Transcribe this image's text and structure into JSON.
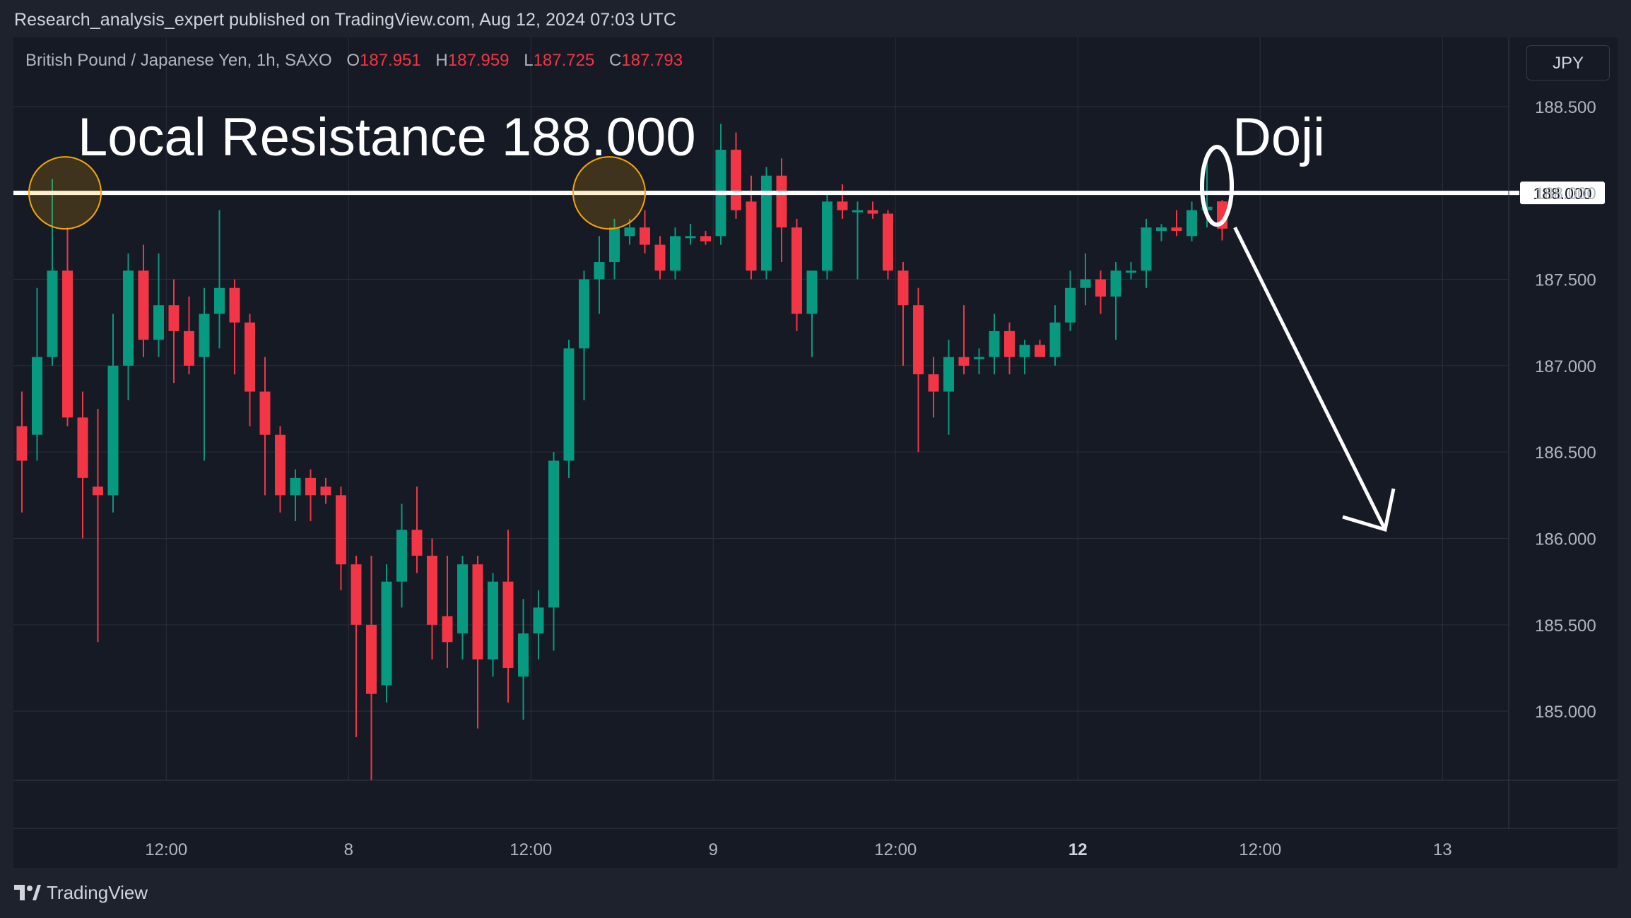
{
  "header": {
    "publisher_line": "Research_analysis_expert published on TradingView.com, Aug 12, 2024 07:03 UTC"
  },
  "legend": {
    "symbol": "British Pound / Japanese Yen, 1h, SAXO",
    "open_label": "O",
    "open": "187.951",
    "high_label": "H",
    "high": "187.959",
    "low_label": "L",
    "low": "187.725",
    "close_label": "C",
    "close": "187.793"
  },
  "currency_button": "JPY",
  "footer": {
    "brand": "TradingView"
  },
  "colors": {
    "up": "#089981",
    "down": "#f23645",
    "background": "#161a25",
    "grid": "#2a2e39",
    "annotation": "#ffffff",
    "highlight_circle": "#f7a600"
  },
  "chart_data": {
    "type": "candlestick",
    "ylim": [
      184.6,
      188.9
    ],
    "y_ticks": [
      "188.500",
      "188.000",
      "187.500",
      "187.000",
      "186.500",
      "186.000",
      "185.500",
      "185.000"
    ],
    "y_tick_values": [
      188.5,
      188.0,
      187.5,
      187.0,
      186.5,
      186.0,
      185.5,
      185.0
    ],
    "x_ticks": [
      {
        "label": "12:00",
        "bold": false,
        "index": 9.5
      },
      {
        "label": "8",
        "bold": false,
        "index": 21.5
      },
      {
        "label": "12:00",
        "bold": false,
        "index": 33.5
      },
      {
        "label": "9",
        "bold": false,
        "index": 45.5
      },
      {
        "label": "12:00",
        "bold": false,
        "index": 57.5
      },
      {
        "label": "12",
        "bold": true,
        "index": 69.5
      },
      {
        "label": "12:00",
        "bold": false,
        "index": 81.5
      },
      {
        "label": "13",
        "bold": false,
        "index": 93.5
      }
    ],
    "candles": [
      [
        186.65,
        186.85,
        186.15,
        186.45
      ],
      [
        186.6,
        187.45,
        186.45,
        187.05
      ],
      [
        187.05,
        188.08,
        187.0,
        187.55
      ],
      [
        187.55,
        187.8,
        186.65,
        186.7
      ],
      [
        186.7,
        186.85,
        186.0,
        186.35
      ],
      [
        186.3,
        186.75,
        185.4,
        186.25
      ],
      [
        186.25,
        187.3,
        186.15,
        187.0
      ],
      [
        187.0,
        187.65,
        186.8,
        187.55
      ],
      [
        187.55,
        187.7,
        187.05,
        187.15
      ],
      [
        187.15,
        187.65,
        187.05,
        187.35
      ],
      [
        187.35,
        187.5,
        186.9,
        187.2
      ],
      [
        187.2,
        187.4,
        186.95,
        187.0
      ],
      [
        187.05,
        187.45,
        186.45,
        187.3
      ],
      [
        187.3,
        187.9,
        187.1,
        187.45
      ],
      [
        187.45,
        187.5,
        186.95,
        187.25
      ],
      [
        187.25,
        187.3,
        186.65,
        186.85
      ],
      [
        186.85,
        187.05,
        186.25,
        186.6
      ],
      [
        186.6,
        186.65,
        186.15,
        186.25
      ],
      [
        186.25,
        186.4,
        186.1,
        186.35
      ],
      [
        186.35,
        186.4,
        186.1,
        186.25
      ],
      [
        186.3,
        186.35,
        186.2,
        186.25
      ],
      [
        186.25,
        186.3,
        185.7,
        185.85
      ],
      [
        185.85,
        185.9,
        184.85,
        185.5
      ],
      [
        185.5,
        185.9,
        184.6,
        185.1
      ],
      [
        185.15,
        185.85,
        185.05,
        185.75
      ],
      [
        185.75,
        186.2,
        185.6,
        186.05
      ],
      [
        186.05,
        186.3,
        185.8,
        185.9
      ],
      [
        185.9,
        186.0,
        185.3,
        185.5
      ],
      [
        185.55,
        185.9,
        185.25,
        185.4
      ],
      [
        185.45,
        185.9,
        185.3,
        185.85
      ],
      [
        185.85,
        185.9,
        184.9,
        185.3
      ],
      [
        185.3,
        185.8,
        185.2,
        185.75
      ],
      [
        185.75,
        186.05,
        185.05,
        185.25
      ],
      [
        185.2,
        185.65,
        184.95,
        185.45
      ],
      [
        185.45,
        185.7,
        185.3,
        185.6
      ],
      [
        185.6,
        186.5,
        185.35,
        186.45
      ],
      [
        186.45,
        187.15,
        186.35,
        187.1
      ],
      [
        187.1,
        187.55,
        186.8,
        187.5
      ],
      [
        187.5,
        187.75,
        187.3,
        187.6
      ],
      [
        187.6,
        187.85,
        187.5,
        187.8
      ],
      [
        187.75,
        187.85,
        187.7,
        187.8
      ],
      [
        187.8,
        187.9,
        187.65,
        187.7
      ],
      [
        187.7,
        187.75,
        187.5,
        187.55
      ],
      [
        187.55,
        187.8,
        187.5,
        187.75
      ],
      [
        187.75,
        187.82,
        187.7,
        187.75
      ],
      [
        187.75,
        187.78,
        187.7,
        187.72
      ],
      [
        187.75,
        188.4,
        187.7,
        188.25
      ],
      [
        188.25,
        188.35,
        187.85,
        187.9
      ],
      [
        187.95,
        188.1,
        187.5,
        187.55
      ],
      [
        187.55,
        188.15,
        187.5,
        188.1
      ],
      [
        188.1,
        188.2,
        187.6,
        187.8
      ],
      [
        187.8,
        187.85,
        187.2,
        187.3
      ],
      [
        187.3,
        187.55,
        187.05,
        187.55
      ],
      [
        187.55,
        188.0,
        187.5,
        187.95
      ],
      [
        187.95,
        188.05,
        187.85,
        187.9
      ],
      [
        187.9,
        187.95,
        187.5,
        187.9
      ],
      [
        187.9,
        187.95,
        187.85,
        187.88
      ],
      [
        187.88,
        187.9,
        187.5,
        187.55
      ],
      [
        187.55,
        187.6,
        187.0,
        187.35
      ],
      [
        187.35,
        187.45,
        186.5,
        186.95
      ],
      [
        186.95,
        187.05,
        186.7,
        186.85
      ],
      [
        186.85,
        187.15,
        186.6,
        187.05
      ],
      [
        187.05,
        187.35,
        186.95,
        187.0
      ],
      [
        187.05,
        187.1,
        186.95,
        187.05
      ],
      [
        187.05,
        187.3,
        186.95,
        187.2
      ],
      [
        187.2,
        187.25,
        186.95,
        187.05
      ],
      [
        187.05,
        187.15,
        186.95,
        187.12
      ],
      [
        187.12,
        187.15,
        187.05,
        187.05
      ],
      [
        187.05,
        187.35,
        187.0,
        187.25
      ],
      [
        187.25,
        187.55,
        187.2,
        187.45
      ],
      [
        187.45,
        187.65,
        187.35,
        187.5
      ],
      [
        187.5,
        187.55,
        187.3,
        187.4
      ],
      [
        187.4,
        187.6,
        187.15,
        187.55
      ],
      [
        187.55,
        187.6,
        187.5,
        187.55
      ],
      [
        187.55,
        187.85,
        187.45,
        187.8
      ],
      [
        187.78,
        187.82,
        187.72,
        187.8
      ],
      [
        187.8,
        187.9,
        187.75,
        187.78
      ],
      [
        187.75,
        187.95,
        187.72,
        187.9
      ],
      [
        187.9,
        188.2,
        187.8,
        187.92
      ],
      [
        187.951,
        187.959,
        187.725,
        187.793
      ]
    ],
    "horizontal_line": {
      "value": 188.0,
      "label": "188.000"
    },
    "annotations": [
      {
        "text": "Local Resistance 188.000"
      },
      {
        "text": "Doji"
      }
    ]
  }
}
